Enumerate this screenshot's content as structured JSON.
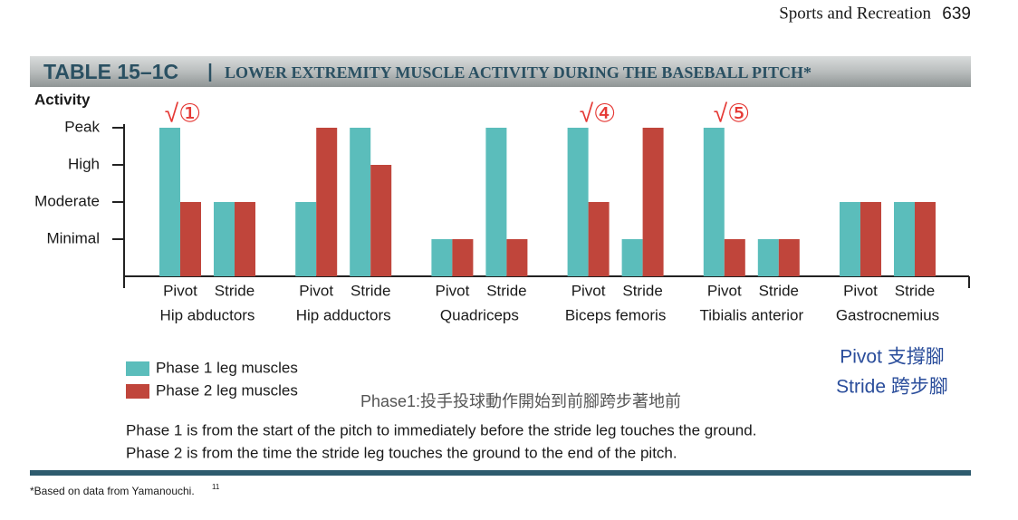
{
  "header": {
    "section": "Sports and Recreation",
    "page_number": "639"
  },
  "chart_data": {
    "type": "bar",
    "table_label": "TABLE 15–1C",
    "title": "LOWER EXTREMITY MUSCLE ACTIVITY DURING THE BASEBALL PITCH*",
    "y_label": "Activity",
    "groups": [
      "Hip abductors",
      "Hip adductors",
      "Quadriceps",
      "Biceps femoris",
      "Tibialis anterior",
      "Gastrocnemius"
    ],
    "categories": [
      "Pivot",
      "Stride",
      "Pivot",
      "Stride",
      "Pivot",
      "Stride",
      "Pivot",
      "Stride",
      "Pivot",
      "Stride",
      "Pivot",
      "Stride"
    ],
    "series": [
      {
        "name": "Phase 1 leg muscles",
        "color": "#5bbdbb",
        "values": [
          4,
          2,
          2,
          4,
          1,
          4,
          4,
          1,
          4,
          1,
          2,
          2
        ]
      },
      {
        "name": "Phase 2 leg muscles",
        "color": "#c0453b",
        "values": [
          2,
          2,
          4,
          3,
          1,
          1,
          2,
          4,
          1,
          1,
          2,
          2
        ]
      }
    ],
    "ylim": [
      0,
      4
    ],
    "yticks": [
      {
        "value": 1,
        "label": "Minimal"
      },
      {
        "value": 2,
        "label": "Moderate"
      },
      {
        "value": 3,
        "label": "High"
      },
      {
        "value": 4,
        "label": "Peak"
      }
    ],
    "annotations": [
      "√①",
      "√④",
      "√⑤"
    ]
  },
  "notes": {
    "pivot": "Pivot 支撐腳",
    "stride": "Stride 跨步腳",
    "phase1_cn": "Phase1:投手投球動作開始到前腳跨步著地前"
  },
  "phase_definitions": [
    "Phase 1 is from the start of the pitch to immediately before the stride leg touches the ground.",
    "Phase 2 is from the time the stride leg touches the ground to the end of the pitch."
  ],
  "footnote": {
    "text": "*Based on data from Yamanouchi.",
    "ref": "11"
  }
}
